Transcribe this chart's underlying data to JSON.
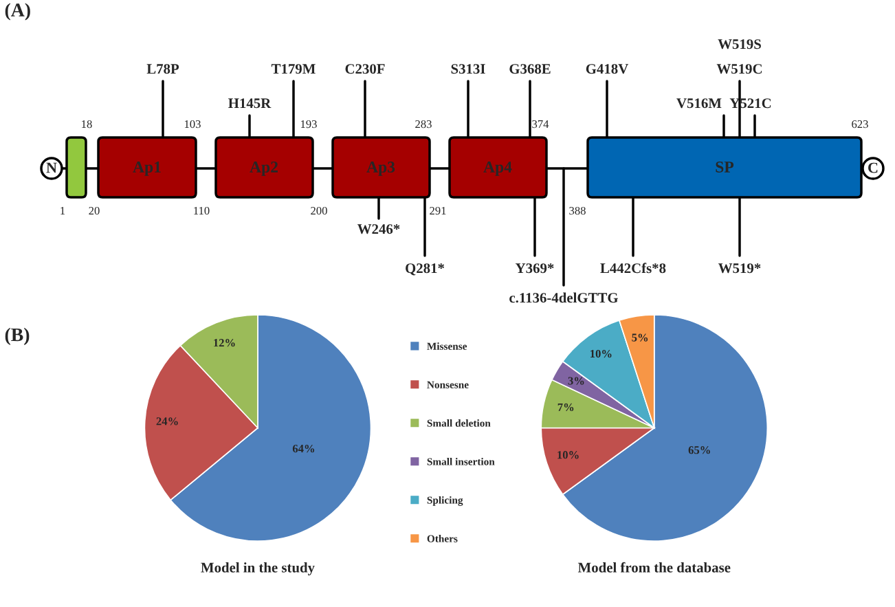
{
  "chart_data": [
    {
      "type": "other",
      "title": "(A)",
      "annotations": [
        "N",
        "C",
        "1",
        "18",
        "20",
        "103",
        "110",
        "193",
        "200",
        "283",
        "291",
        "374",
        "388",
        "623",
        "Ap1",
        "Ap2",
        "Ap3",
        "Ap4",
        "SP",
        "L78P",
        "H145R",
        "T179M",
        "C230F",
        "S313I",
        "G368E",
        "G418V",
        "V516M",
        "W519C",
        "W519S",
        "Y521C",
        "W246*",
        "Q281*",
        "Y369*",
        "c.1136-4delGTTG",
        "L442Cfs*8",
        "W519*"
      ]
    },
    {
      "type": "pie",
      "title": "Model in the study",
      "annotations": [
        "(B)"
      ],
      "values": [
        64,
        24,
        12
      ],
      "value_labels": [
        "64%",
        "24%",
        "12%"
      ],
      "colors": [
        "#4f81bd",
        "#c0504d",
        "#9bbb59"
      ]
    },
    {
      "type": "pie",
      "title": "Model from the database",
      "legend": "left",
      "categories": [
        "Missense",
        "Nonsesne",
        "Small deletion",
        "Small insertion",
        "Splicing",
        "Others"
      ],
      "values": [
        65,
        10,
        7,
        3,
        10,
        5
      ],
      "value_labels": [
        "65%",
        "10%",
        "7%",
        "3%",
        "10%",
        "5%"
      ],
      "colors": [
        "#4f81bd",
        "#c0504d",
        "#9bbb59",
        "#8064a2",
        "#4bacc6",
        "#f79646"
      ]
    }
  ]
}
